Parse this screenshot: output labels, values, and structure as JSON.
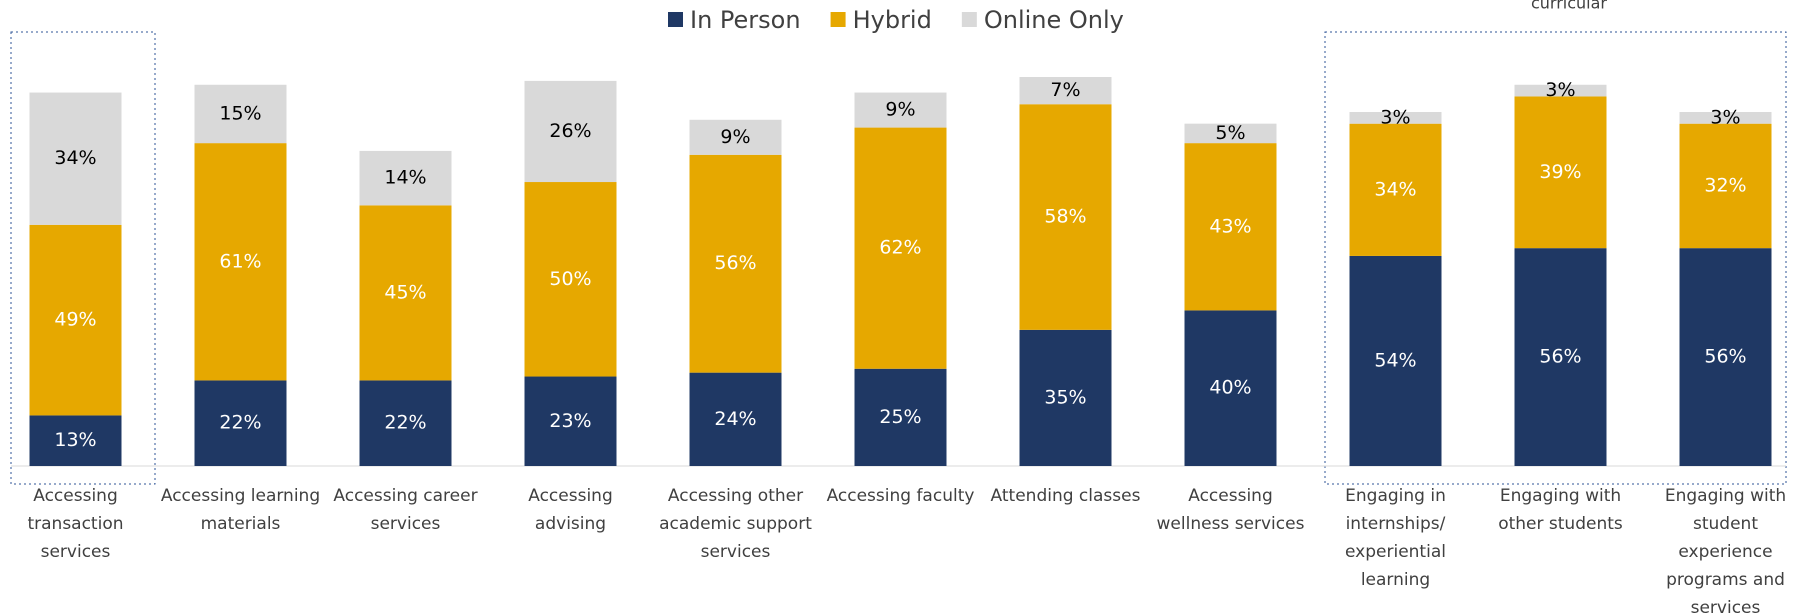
{
  "chart_data": {
    "type": "stacked_bar",
    "annotation": "curricular",
    "categories": [
      "Accessing transaction services",
      "Accessing learning materials",
      "Accessing career services",
      "Accessing advising",
      "Accessing other academic support services",
      "Accessing faculty",
      "Attending classes",
      "Accessing wellness services",
      "Engaging in internships/ experiential learning",
      "Engaging with other students",
      "Engaging with student experience programs and services"
    ],
    "series": [
      {
        "name": "In Person",
        "color": "#1f3864",
        "values": [
          13,
          22,
          22,
          23,
          24,
          25,
          35,
          40,
          54,
          56,
          56
        ],
        "value_labels": [
          "13%",
          "22%",
          "22%",
          "23%",
          "24%",
          "25%",
          "35%",
          "40%",
          "54%",
          "56%",
          "56%"
        ]
      },
      {
        "name": "Hybrid",
        "color": "#e6a800",
        "values": [
          49,
          61,
          45,
          50,
          56,
          62,
          58,
          43,
          34,
          39,
          32
        ],
        "value_labels": [
          "49%",
          "61%",
          "45%",
          "50%",
          "56%",
          "62%",
          "58%",
          "43%",
          "34%",
          "39%",
          "32%"
        ]
      },
      {
        "name": "Online Only",
        "color": "#d9d9d9",
        "values": [
          34,
          15,
          14,
          26,
          9,
          9,
          7,
          5,
          3,
          3,
          3
        ],
        "value_labels": [
          "34%",
          "15%",
          "14%",
          "26%",
          "9%",
          "9%",
          "7%",
          "5%",
          "3%",
          "3%",
          "3%"
        ]
      }
    ],
    "ylim": [
      0,
      100
    ]
  }
}
